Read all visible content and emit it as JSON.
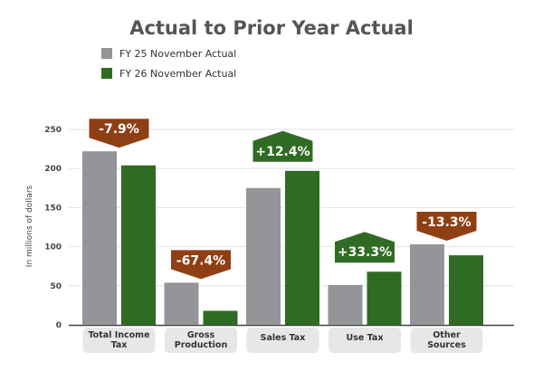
{
  "chart_data": {
    "type": "bar",
    "title": "Actual to Prior Year Actual",
    "ylabel": "In millions of dollars",
    "xlabel": "",
    "ylim": [
      0,
      250
    ],
    "yticks": [
      0,
      50,
      100,
      150,
      200,
      250
    ],
    "grid": true,
    "legend_position": "top-left",
    "categories": [
      [
        "Total Income",
        "Tax"
      ],
      [
        "Gross",
        "Production"
      ],
      [
        "Sales Tax"
      ],
      [
        "Use Tax"
      ],
      [
        "Other",
        "Sources"
      ]
    ],
    "series": [
      {
        "name": "FY 25 November Actual",
        "color": "#939598",
        "values": [
          222,
          54,
          175,
          51,
          103
        ]
      },
      {
        "name": "FY 26 November Actual",
        "color": "#2f6b22",
        "values": [
          204,
          18,
          197,
          68,
          89
        ]
      }
    ],
    "annotations": [
      {
        "text": "-7.9%",
        "direction": "down",
        "color": "#8f3f14"
      },
      {
        "text": "-67.4%",
        "direction": "down",
        "color": "#8f3f14"
      },
      {
        "text": "+12.4%",
        "direction": "up",
        "color": "#2f6b22"
      },
      {
        "text": "+33.3%",
        "direction": "up",
        "color": "#2f6b22"
      },
      {
        "text": "-13.3%",
        "direction": "down",
        "color": "#8f3f14"
      }
    ]
  }
}
